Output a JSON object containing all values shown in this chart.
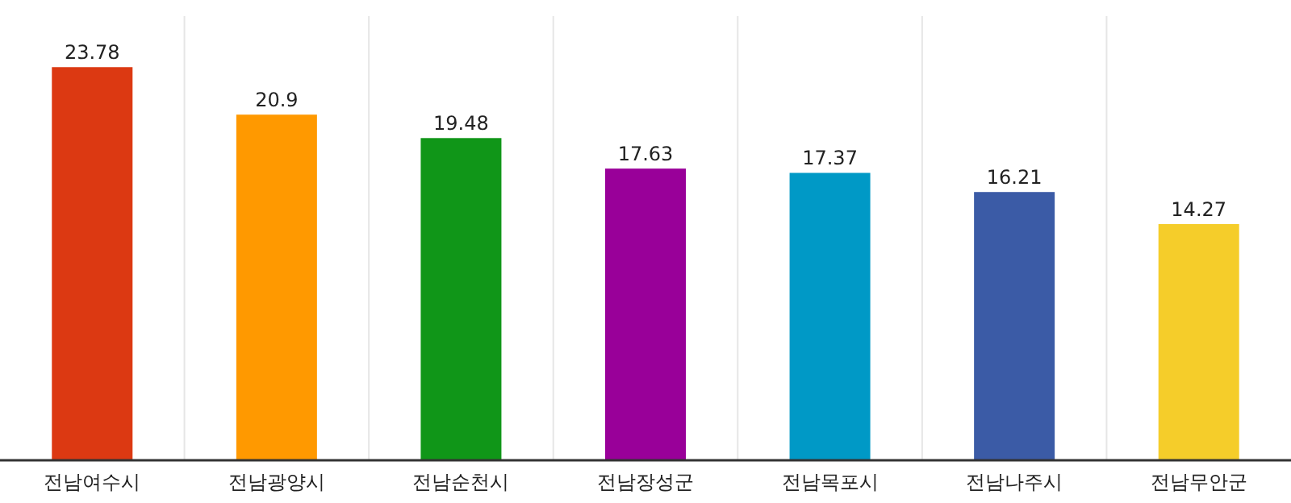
{
  "chart_data": {
    "type": "bar",
    "categories": [
      "전남여수시",
      "전남광양시",
      "전남순천시",
      "전남장성군",
      "전남목포시",
      "전남나주시",
      "전남무안군"
    ],
    "values": [
      23.78,
      20.9,
      19.48,
      17.63,
      17.37,
      16.21,
      14.27
    ],
    "colors": [
      "#dc3912",
      "#ff9900",
      "#109618",
      "#990099",
      "#0099c6",
      "#3b5ba6",
      "#f5cd2a"
    ],
    "data_labels": true,
    "grid": "x"
  }
}
